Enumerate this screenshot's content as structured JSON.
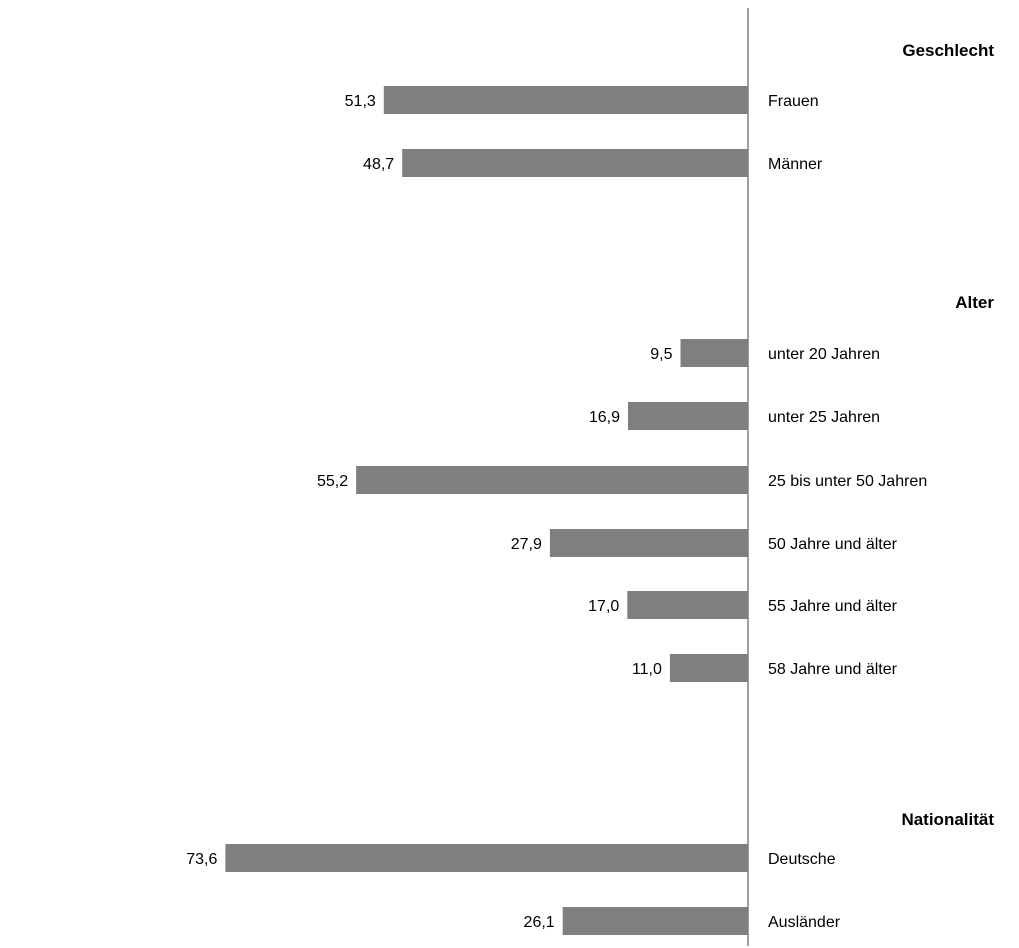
{
  "colors": {
    "bar": "#7f7f7f",
    "axis": "#808080",
    "text": "#000000"
  },
  "chart_data": {
    "type": "bar",
    "orientation": "horizontal",
    "direction": "leftward",
    "decimal_separator": ",",
    "grid": false,
    "groups": [
      {
        "title": "Geschlecht",
        "items": [
          {
            "label": "Frauen",
            "value": 51.3,
            "value_label": "51,3"
          },
          {
            "label": "Männer",
            "value": 48.7,
            "value_label": "48,7"
          }
        ]
      },
      {
        "title": "Alter",
        "items": [
          {
            "label": "unter 20 Jahren",
            "value": 9.5,
            "value_label": "9,5"
          },
          {
            "label": "unter 25 Jahren",
            "value": 16.9,
            "value_label": "16,9"
          },
          {
            "label": "25 bis unter 50 Jahren",
            "value": 55.2,
            "value_label": "55,2"
          },
          {
            "label": "50 Jahre und älter",
            "value": 27.9,
            "value_label": "27,9"
          },
          {
            "label": "55 Jahre und älter",
            "value": 17.0,
            "value_label": "17,0"
          },
          {
            "label": "58 Jahre und älter",
            "value": 11.0,
            "value_label": "11,0"
          }
        ]
      },
      {
        "title": "Nationalität",
        "items": [
          {
            "label": "Deutsche",
            "value": 73.6,
            "value_label": "73,6"
          },
          {
            "label": "Ausländer",
            "value": 26.1,
            "value_label": "26,1"
          }
        ]
      }
    ]
  }
}
